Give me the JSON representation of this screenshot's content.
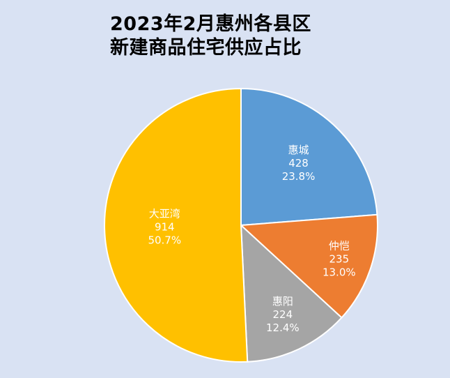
{
  "chart_data": {
    "type": "pie",
    "title_line1": "2023年2月惠州各县区",
    "title_line2": "新建商品住宅供应占比",
    "slices": [
      {
        "name": "惠城",
        "value": 428,
        "percent": "23.8%",
        "color": "#5b9bd5"
      },
      {
        "name": "仲恺",
        "value": 235,
        "percent": "13.0%",
        "color": "#ed7d31"
      },
      {
        "name": "惠阳",
        "value": 224,
        "percent": "12.4%",
        "color": "#a5a5a5"
      },
      {
        "name": "大亚湾",
        "value": 914,
        "percent": "50.7%",
        "color": "#ffc000"
      }
    ]
  }
}
